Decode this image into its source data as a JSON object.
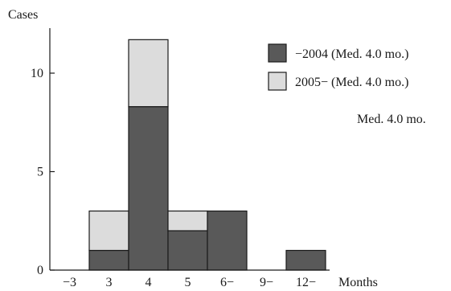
{
  "chart_data": {
    "type": "bar",
    "stacked": true,
    "ylabel": "Cases",
    "xlabel": "Months",
    "categories": [
      "−3",
      "3",
      "4",
      "5",
      "6−",
      "9−",
      "12−"
    ],
    "ylim": [
      0,
      12
    ],
    "yticks": [
      0,
      5,
      10
    ],
    "grid": false,
    "legend_position": "top-right",
    "series": [
      {
        "name": "−2004 (Med. 4.0 mo.)",
        "values": [
          0,
          1,
          8.3,
          2,
          3,
          0,
          1
        ],
        "color": "#595959"
      },
      {
        "name": "2005− (Med. 4.0 mo.)",
        "values": [
          0,
          2,
          3.4,
          1,
          0,
          0,
          0
        ],
        "color": "#dcdcdc"
      }
    ],
    "annotation": "Med. 4.0 mo."
  }
}
